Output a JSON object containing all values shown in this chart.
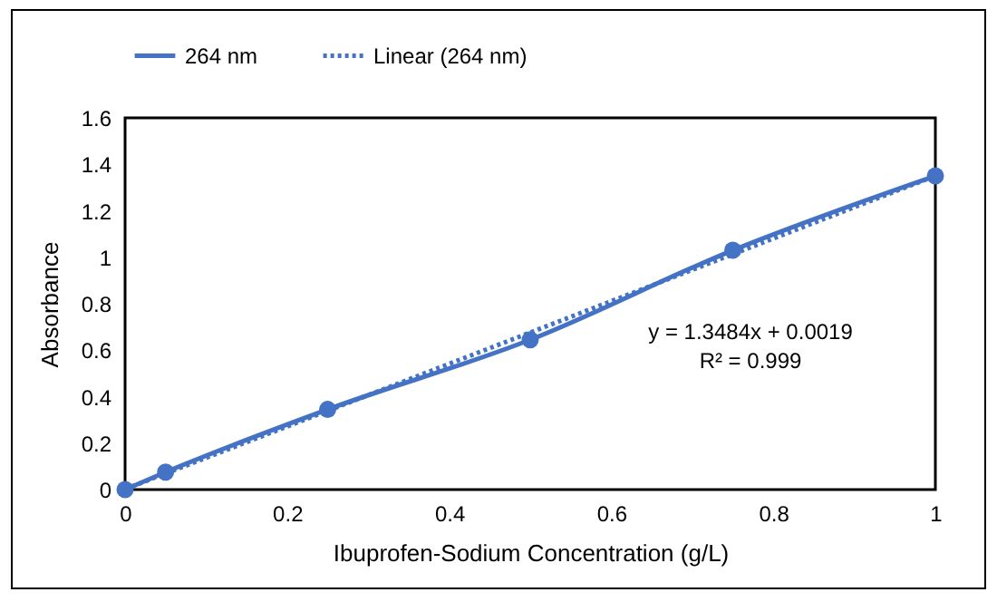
{
  "chart_data": {
    "type": "line",
    "xlabel": "Ibuprofen-Sodium Concentration (g/L)",
    "ylabel": "Absorbance",
    "x": [
      0,
      0.05,
      0.25,
      0.5,
      0.75,
      1
    ],
    "series": [
      {
        "name": "264 nm",
        "color": "#4472c4",
        "marker": "circle",
        "line_style": "solid",
        "values": [
          0,
          0.075,
          0.345,
          0.645,
          1.03,
          1.35
        ]
      },
      {
        "name": "Linear (264 nm)",
        "color": "#4472c4",
        "type": "line",
        "marker": "none",
        "line_style": "dotted",
        "x": [
          0,
          1
        ],
        "values": [
          0.0019,
          1.3503
        ]
      }
    ],
    "annotations": [
      "y = 1.3484x + 0.0019",
      "R² = 0.999"
    ],
    "xlim": [
      0,
      1
    ],
    "xticks": [
      0,
      0.2,
      0.4,
      0.6,
      0.8,
      1
    ],
    "ylim": [
      0,
      1.6
    ],
    "yticks": [
      0,
      0.2,
      0.4,
      0.6,
      0.8,
      1,
      1.2,
      1.4,
      1.6
    ],
    "grid": false,
    "legend": "top"
  }
}
